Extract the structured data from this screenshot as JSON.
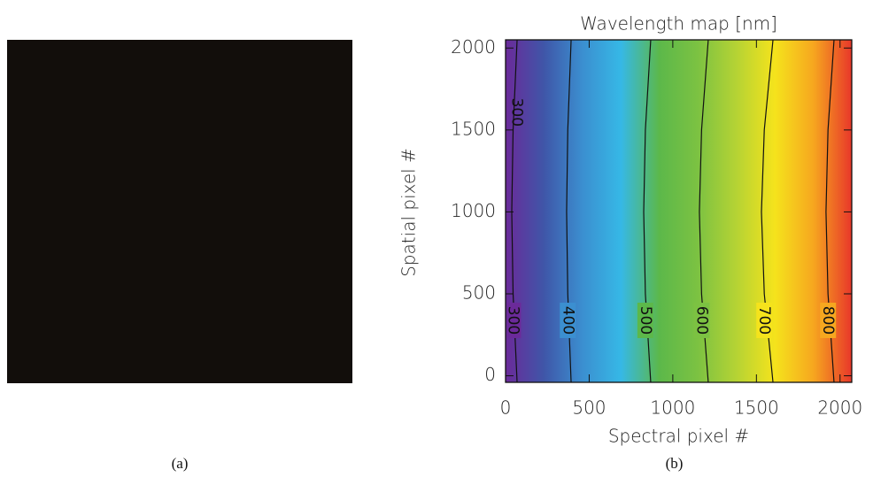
{
  "chart_data": [
    {
      "type": "image",
      "caption": "(a)"
    },
    {
      "type": "contour",
      "caption": "(b)",
      "title": "Wavelength map [nm]",
      "x_label": "Spectral pixel #",
      "y_label": "Spatial pixel #",
      "xlim": [
        0,
        2070
      ],
      "ylim": [
        -40,
        2050
      ],
      "xticks": [
        0,
        500,
        1000,
        1500,
        2000
      ],
      "yticks": [
        0,
        500,
        1000,
        1500,
        2000
      ],
      "colorscale": [
        "#6b2a9a",
        "#3f56a8",
        "#3b8fd0",
        "#36b8e6",
        "#5cb84a",
        "#7cc242",
        "#b5d334",
        "#f5e31c",
        "#f6a71f",
        "#e8372a"
      ],
      "contours": [
        {
          "level": 300,
          "x": [
            69,
            45,
            37,
            45,
            69
          ],
          "y": [
            -40,
            500,
            1000,
            1500,
            2050
          ]
        },
        {
          "level": 400,
          "x": [
            392,
            372,
            365,
            372,
            392
          ],
          "y": [
            -40,
            500,
            1000,
            1500,
            2050
          ]
        },
        {
          "level": 500,
          "x": [
            868,
            836,
            826,
            836,
            868
          ],
          "y": [
            -40,
            500,
            1000,
            1500,
            2050
          ]
        },
        {
          "level": 600,
          "x": [
            1212,
            1172,
            1159,
            1172,
            1212
          ],
          "y": [
            -40,
            500,
            1000,
            1500,
            2050
          ]
        },
        {
          "level": 700,
          "x": [
            1599,
            1547,
            1530,
            1547,
            1599
          ],
          "y": [
            -40,
            500,
            1000,
            1500,
            2050
          ]
        },
        {
          "level": 800,
          "x": [
            1964,
            1928,
            1916,
            1928,
            1964
          ],
          "y": [
            -40,
            500,
            1000,
            1500,
            2050
          ]
        }
      ]
    }
  ]
}
